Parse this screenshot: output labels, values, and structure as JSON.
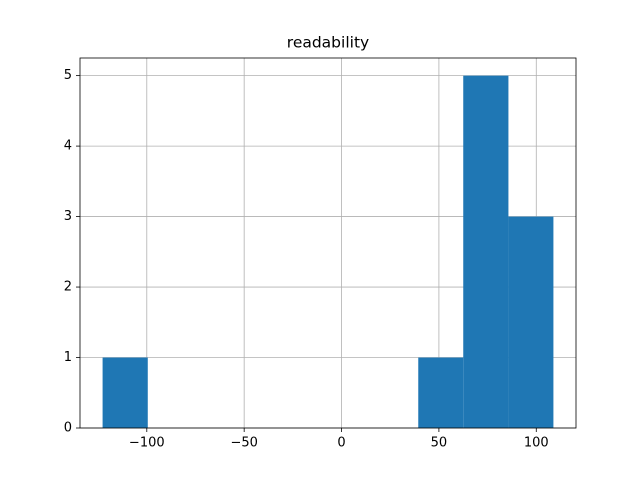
{
  "chart_data": {
    "type": "histogram",
    "title": "readability",
    "bins": [
      -122.7,
      -99.5,
      -76.4,
      -53.2,
      -30.1,
      -6.9,
      16.2,
      39.4,
      62.5,
      85.7,
      108.8
    ],
    "counts": [
      1,
      0,
      0,
      0,
      0,
      0,
      0,
      1,
      5,
      3
    ],
    "color": "#1f77b4",
    "xlim": [
      -134.3,
      120.4
    ],
    "xticks": [
      {
        "value": -100,
        "label": "−100"
      },
      {
        "value": -50,
        "label": "−50"
      },
      0,
      50,
      100
    ],
    "ylim": [
      0,
      5.25
    ],
    "yticks": [
      0,
      1,
      2,
      3,
      4,
      5
    ],
    "grid": true
  }
}
